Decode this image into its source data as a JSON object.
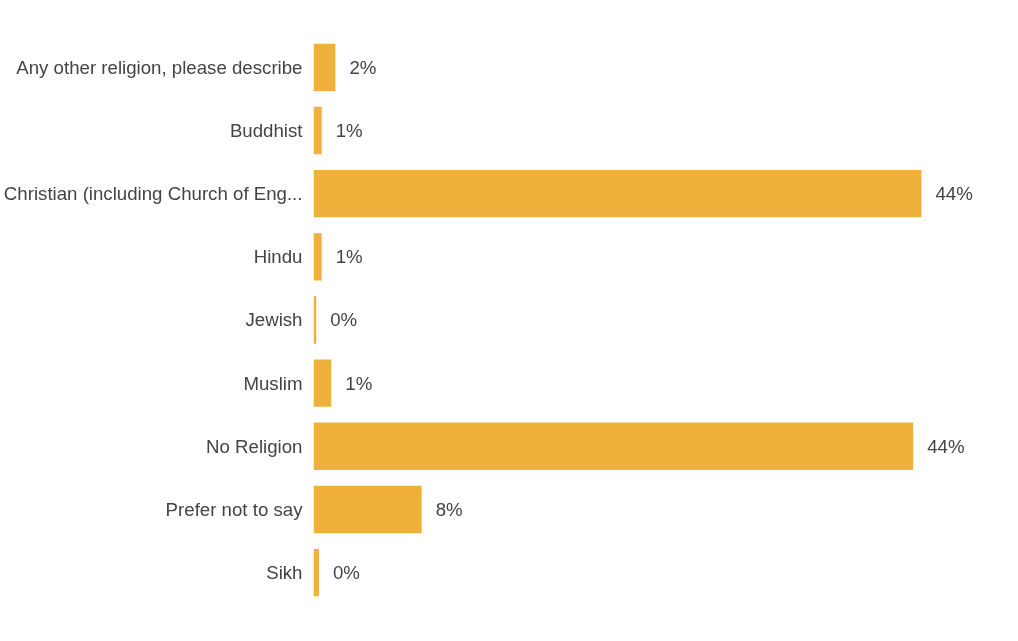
{
  "chart_data": {
    "type": "bar",
    "orientation": "horizontal",
    "categories": [
      "Any other religion, please describe",
      "Buddhist",
      "Christian (including Church of Eng...",
      "Hindu",
      "Jewish",
      "Muslim",
      "No Religion",
      "Prefer not to say",
      "Sikh"
    ],
    "values": [
      1.6,
      0.6,
      44.4,
      0.6,
      0.2,
      1.3,
      43.8,
      7.9,
      0.4
    ],
    "value_labels": [
      "2%",
      "1%",
      "44%",
      "1%",
      "0%",
      "1%",
      "44%",
      "8%",
      "0%"
    ],
    "color": "#f0b13c"
  }
}
